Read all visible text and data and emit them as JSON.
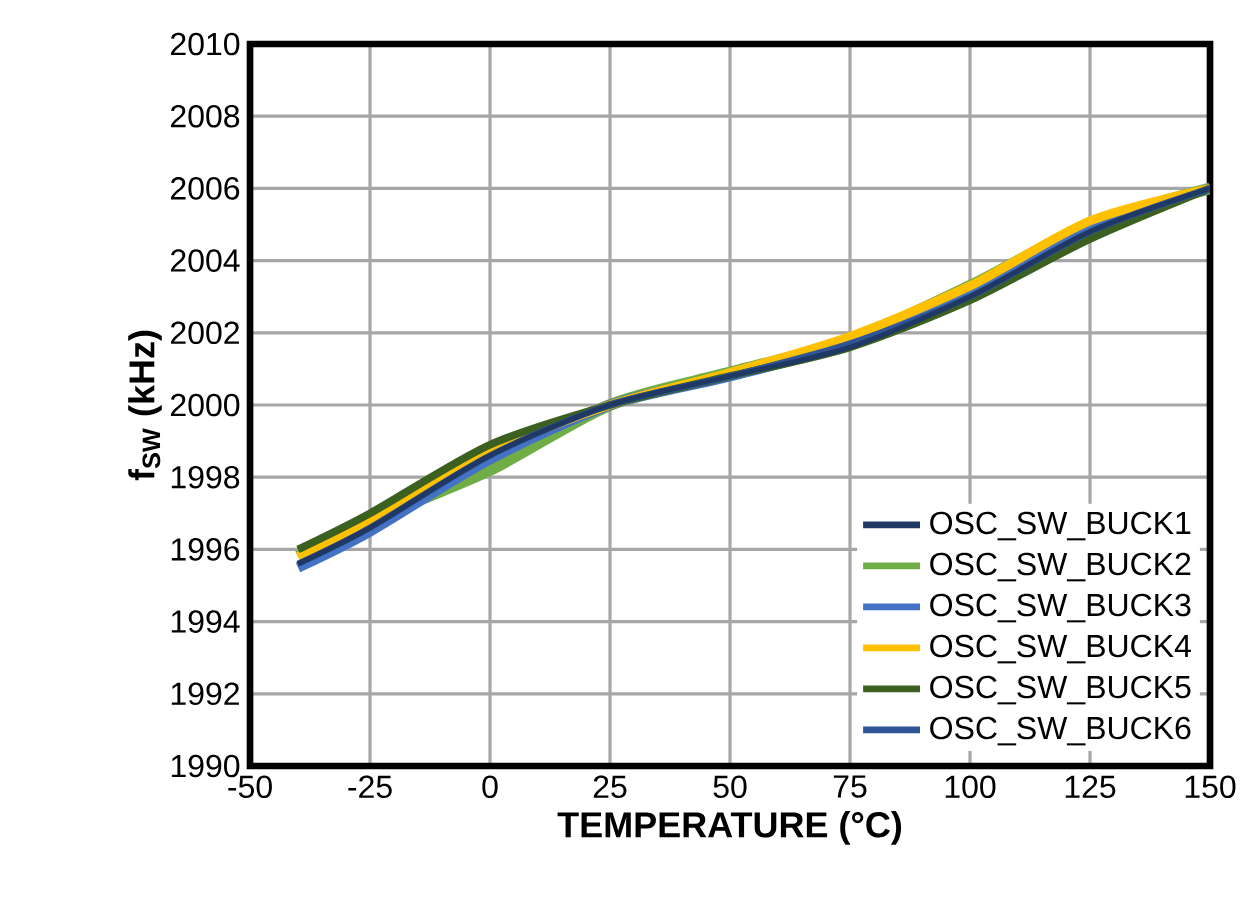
{
  "chart_data": {
    "type": "line",
    "xlabel": "TEMPERATURE (°C)",
    "ylabel": "f$_{SW}$ (kHz)",
    "x": [
      -40,
      -25,
      0,
      25,
      50,
      75,
      100,
      125,
      150
    ],
    "series": [
      {
        "name": "OSC_SW_BUCK1",
        "color": "#1f3864",
        "values": [
          1995.6,
          1996.6,
          1998.6,
          2000,
          2000.8,
          2001.6,
          2003.0,
          2004.8,
          2006
        ]
      },
      {
        "name": "OSC_SW_BUCK2",
        "color": "#70ad47",
        "values": [
          1995.8,
          1996.8,
          1998.2,
          2000,
          2000.9,
          2001.8,
          2003.3,
          2005.0,
          2006
        ]
      },
      {
        "name": "OSC_SW_BUCK3",
        "color": "#4472c4",
        "values": [
          1995.5,
          1996.5,
          1998.5,
          2000,
          2000.8,
          2001.7,
          2003.1,
          2004.9,
          2006
        ]
      },
      {
        "name": "OSC_SW_BUCK4",
        "color": "#ffc000",
        "values": [
          1995.8,
          1996.8,
          1998.7,
          2000,
          2000.9,
          2001.9,
          2003.3,
          2005.1,
          2006
        ]
      },
      {
        "name": "OSC_SW_BUCK5",
        "color": "#3b6020",
        "values": [
          1996.0,
          1997.0,
          1998.9,
          2000,
          2000.8,
          2001.6,
          2002.9,
          2004.6,
          2006
        ]
      },
      {
        "name": "OSC_SW_BUCK6",
        "color": "#2f5597",
        "values": [
          1995.6,
          1996.6,
          1998.6,
          2000,
          2000.8,
          2001.7,
          2003.0,
          2004.8,
          2006
        ]
      }
    ],
    "xlim": [
      -50,
      150
    ],
    "xticks": [
      -50,
      -25,
      0,
      25,
      50,
      75,
      100,
      125,
      150
    ],
    "ylim": [
      1990,
      2010
    ],
    "yticks": [
      1990,
      1992,
      1994,
      1996,
      1998,
      2000,
      2002,
      2004,
      2006,
      2008,
      2010
    ],
    "grid": true,
    "legend": "bottom right",
    "marker": "none",
    "line_style": "solid"
  }
}
